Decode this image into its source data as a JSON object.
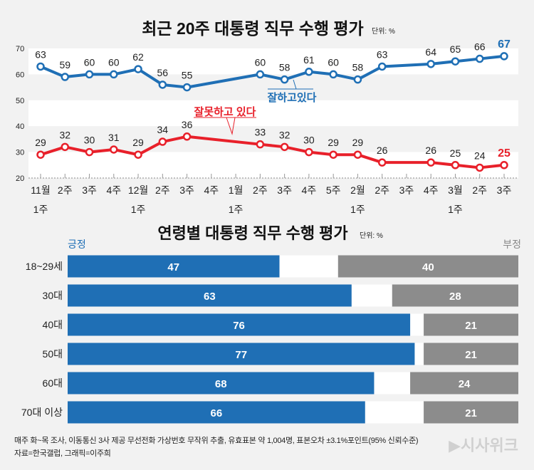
{
  "chart_data": [
    {
      "type": "line",
      "title": "최근 20주 대통령 직무 수행 평가",
      "unit": "단위: %",
      "ylim": [
        20,
        70
      ],
      "yticks": [
        20,
        30,
        40,
        50,
        60,
        70
      ],
      "categories": [
        "11월\n1주",
        "2주",
        "3주",
        "4주",
        "12월\n1주",
        "2주",
        "3주",
        "4주",
        "1월\n1주",
        "2주",
        "3주",
        "4주",
        "5주",
        "2월\n1주",
        "2주",
        "3주",
        "4주",
        "3월\n1주",
        "2주",
        "3주"
      ],
      "series": [
        {
          "name": "잘하고있다",
          "color": "#1f6fb5",
          "values": [
            63,
            59,
            60,
            60,
            62,
            56,
            55,
            null,
            null,
            60,
            58,
            61,
            60,
            58,
            63,
            null,
            64,
            65,
            66,
            67
          ]
        },
        {
          "name": "잘못하고 있다",
          "color": "#e8202a",
          "values": [
            29,
            32,
            30,
            31,
            29,
            34,
            36,
            null,
            null,
            33,
            32,
            30,
            29,
            29,
            26,
            null,
            26,
            25,
            24,
            25
          ]
        }
      ],
      "grid": "alternating bands"
    },
    {
      "type": "bar",
      "stacked": "diverging",
      "title": "연령별 대통령 직무 수행 평가",
      "unit": "단위: %",
      "legend_left": "긍정",
      "legend_right": "부정",
      "categories": [
        "18~29세",
        "30대",
        "40대",
        "50대",
        "60대",
        "70대 이상"
      ],
      "series": [
        {
          "name": "긍정",
          "color": "#1f6fb5",
          "values": [
            47,
            63,
            76,
            77,
            68,
            66
          ]
        },
        {
          "name": "부정",
          "color": "#8c8c8c",
          "values": [
            40,
            28,
            21,
            21,
            24,
            21
          ]
        }
      ]
    }
  ],
  "footer": {
    "note": "매주 화~목 조사, 이동통신 3사 제공 무선전화 가상번호 무작위 추출, 유효표본 약 1,004명, 표본오차 ±3.1%포인트(95% 신뢰수준)",
    "source": "자료=한국갤럽, 그래픽=이주희",
    "logo": "시사위크"
  }
}
